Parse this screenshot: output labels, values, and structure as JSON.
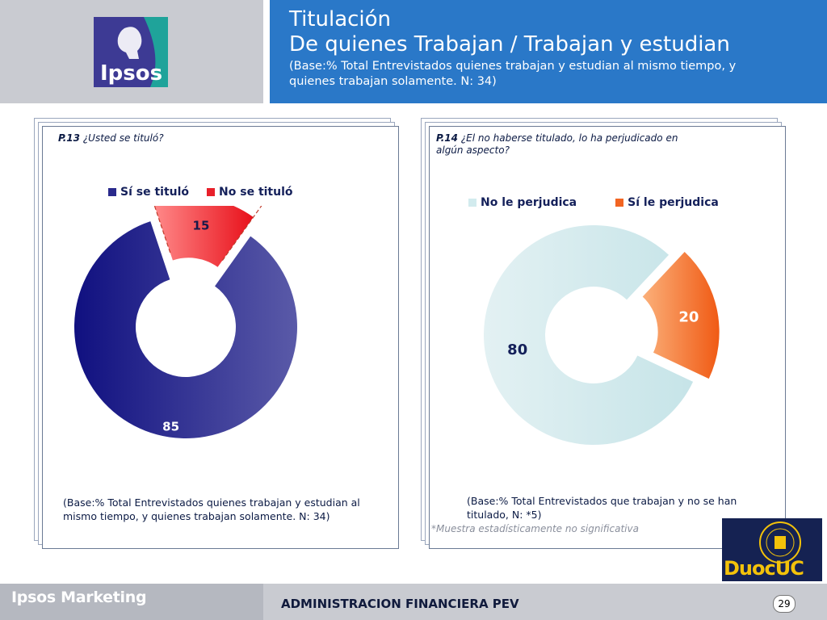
{
  "header": {
    "title_line1": "Titulación",
    "title_line2": "De quienes Trabajan / Trabajan y estudian",
    "base_line1": "(Base:% Total Entrevistados quienes trabajan y estudian al mismo tiempo, y",
    "base_line2": "quienes trabajan solamente. N: 34)",
    "logo_text": "Ipsos"
  },
  "colors": {
    "header_blue": "#2a78c8",
    "si_titulo": "#2a2a8c",
    "no_titulo": "#e8202a",
    "no_perjudica": "#d2ebee",
    "si_perjudica": "#f26522"
  },
  "left_panel": {
    "question_num": "P.13",
    "question_text": "¿Usted se tituló?",
    "base_line1": "(Base:% Total Entrevistados quienes trabajan y estudian al",
    "base_line2": "mismo tiempo, y quienes trabajan solamente. N: 34)"
  },
  "right_panel": {
    "question_num": "P.14",
    "question_text_line1": "¿El no haberse titulado, lo ha perjudicado en",
    "question_text_line2": "algún aspecto?",
    "base_line1": "(Base:% Total Entrevistados que  trabajan y no se han",
    "base_line2": "titulado, N: *5)",
    "significance_note": "*Muestra estadísticamente no significativa"
  },
  "chart_data": [
    {
      "type": "pie",
      "variant": "donut",
      "categories": [
        "Sí se tituló",
        "No se tituló"
      ],
      "values": [
        85,
        15
      ],
      "legend_position": "top"
    },
    {
      "type": "pie",
      "variant": "donut",
      "categories": [
        "No le perjudica",
        "Sí le perjudica"
      ],
      "values": [
        80,
        20
      ],
      "legend_position": "top"
    }
  ],
  "footer": {
    "brand": "Ipsos Marketing",
    "center": "ADMINISTRACION FINANCIERA PEV",
    "page": "29",
    "duoc_logo": "DuocUC"
  }
}
